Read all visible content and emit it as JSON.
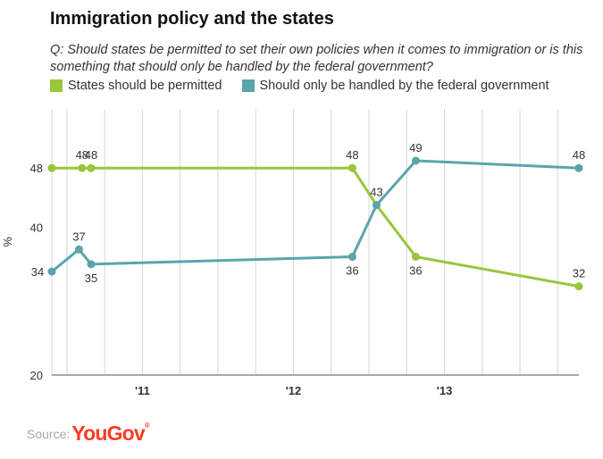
{
  "title": "Immigration policy and the states",
  "subtitle": "Q: Should states be permitted to set their own policies when it comes to immigration or is this something that should only be handled by the federal government?",
  "source_label": "Source:",
  "brand": "YouGov",
  "brand_mark": "®",
  "colors": {
    "states": "#99c63a",
    "federal": "#5aa5ab",
    "grid": "#d6d6d6",
    "axis": "#555555"
  },
  "chart_data": {
    "type": "line",
    "title": "Immigration policy and the states",
    "ylabel": "%",
    "ylim": [
      20,
      56
    ],
    "xlim": [
      2010.4,
      2013.89
    ],
    "y_ticks": [
      20,
      40,
      48
    ],
    "y_tick_labels": [
      "20",
      "40",
      "48"
    ],
    "x_ticks": [
      2011.0,
      2012.0,
      2013.0
    ],
    "x_tick_labels": [
      "'11",
      "'12",
      "'13"
    ],
    "grid": true,
    "legend": "top-left",
    "series": [
      {
        "name": "States should be permitted",
        "color": "#99c63a",
        "points": [
          {
            "x": 2010.4,
            "y": 48,
            "label": ""
          },
          {
            "x": 2010.6,
            "y": 48,
            "label": "48"
          },
          {
            "x": 2010.66,
            "y": 48,
            "label": "48"
          },
          {
            "x": 2012.39,
            "y": 48,
            "label": "48"
          },
          {
            "x": 2012.55,
            "y": 43,
            "label": ""
          },
          {
            "x": 2012.81,
            "y": 36,
            "label": "36"
          },
          {
            "x": 2013.89,
            "y": 32,
            "label": "32"
          }
        ]
      },
      {
        "name": "Should only be handled by the federal government",
        "color": "#5aa5ab",
        "points": [
          {
            "x": 2010.4,
            "y": 34,
            "label": "34"
          },
          {
            "x": 2010.58,
            "y": 37,
            "label": "37"
          },
          {
            "x": 2010.66,
            "y": 35,
            "label": "35"
          },
          {
            "x": 2012.39,
            "y": 36,
            "label": "36"
          },
          {
            "x": 2012.55,
            "y": 43,
            "label": "43"
          },
          {
            "x": 2012.81,
            "y": 49,
            "label": "49"
          },
          {
            "x": 2013.89,
            "y": 48,
            "label": "48"
          }
        ]
      }
    ]
  }
}
